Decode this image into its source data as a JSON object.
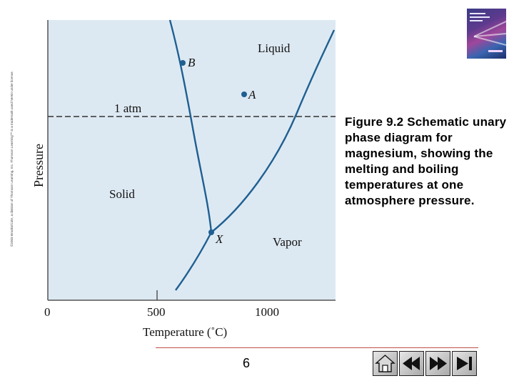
{
  "copyright": "©2003 Brooks/Cole, a division of Thomson Learning, Inc. Thomson Learning™ is a trademark used herein under license.",
  "diagram": {
    "region_labels": {
      "liquid": "Liquid",
      "solid": "Solid",
      "vapor": "Vapor"
    },
    "point_labels": {
      "b": "B",
      "a": "A",
      "x": "X"
    },
    "line_label": "1 atm",
    "ylabel": "Pressure",
    "xlabel": "Temperature (˚C)",
    "xticks": [
      "0",
      "500",
      "1000"
    ],
    "colors": {
      "plot_bg": "#dde9f2",
      "curve": "#1f5f92",
      "point": "#1f5f92",
      "dashed_line": "#333333"
    }
  },
  "caption": "Figure 9.2 Schematic unary phase diagram for magnesium, showing the melting and boiling temperatures at one atmosphere pressure.",
  "page_number": "6",
  "nav_buttons": [
    {
      "name": "home",
      "icon": "home-icon"
    },
    {
      "name": "previous",
      "icon": "rewind-icon"
    },
    {
      "name": "next",
      "icon": "forward-icon"
    },
    {
      "name": "last",
      "icon": "end-icon"
    }
  ]
}
